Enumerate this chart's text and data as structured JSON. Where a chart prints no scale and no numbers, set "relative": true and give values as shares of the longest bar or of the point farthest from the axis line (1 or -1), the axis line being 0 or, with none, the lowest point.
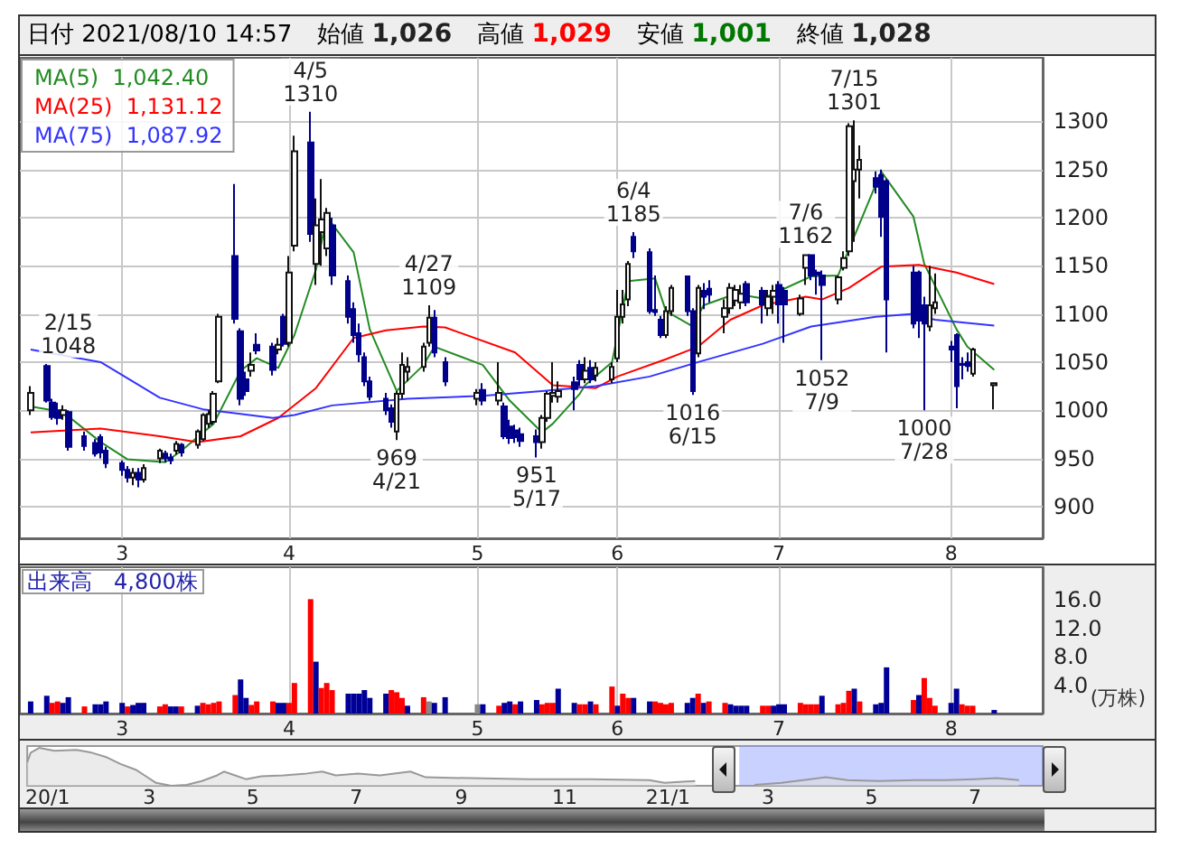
{
  "chart_data": [
    {
      "type": "candlestick",
      "x": [
        "2021-02-12",
        "2021-02-15",
        "2021-02-16",
        "2021-02-17",
        "2021-02-18",
        "2021-02-19",
        "2021-02-22",
        "2021-02-24",
        "2021-02-25",
        "2021-02-26",
        "2021-03-01",
        "2021-03-02",
        "2021-03-03",
        "2021-03-04",
        "2021-03-05",
        "2021-03-08",
        "2021-03-09",
        "2021-03-10",
        "2021-03-11",
        "2021-03-12",
        "2021-03-15",
        "2021-03-16",
        "2021-03-17",
        "2021-03-18",
        "2021-03-19",
        "2021-03-22",
        "2021-03-23",
        "2021-03-24",
        "2021-03-25",
        "2021-03-26",
        "2021-03-29",
        "2021-03-30",
        "2021-03-31",
        "2021-04-01",
        "2021-04-02",
        "2021-04-05",
        "2021-04-06",
        "2021-04-07",
        "2021-04-08",
        "2021-04-09",
        "2021-04-12",
        "2021-04-13",
        "2021-04-14",
        "2021-04-15",
        "2021-04-16",
        "2021-04-19",
        "2021-04-20",
        "2021-04-21",
        "2021-04-22",
        "2021-04-23",
        "2021-04-26",
        "2021-04-27",
        "2021-04-28",
        "2021-04-30",
        "2021-05-06",
        "2021-05-07",
        "2021-05-10",
        "2021-05-11",
        "2021-05-12",
        "2021-05-13",
        "2021-05-14",
        "2021-05-17",
        "2021-05-18",
        "2021-05-19",
        "2021-05-20",
        "2021-05-21",
        "2021-05-24",
        "2021-05-25",
        "2021-05-26",
        "2021-05-27",
        "2021-05-28",
        "2021-05-31",
        "2021-06-01",
        "2021-06-02",
        "2021-06-03",
        "2021-06-04",
        "2021-06-07",
        "2021-06-08",
        "2021-06-09",
        "2021-06-10",
        "2021-06-11",
        "2021-06-14",
        "2021-06-15",
        "2021-06-16",
        "2021-06-17",
        "2021-06-18",
        "2021-06-21",
        "2021-06-22",
        "2021-06-23",
        "2021-06-24",
        "2021-06-25",
        "2021-06-28",
        "2021-06-29",
        "2021-06-30",
        "2021-07-01",
        "2021-07-02",
        "2021-07-05",
        "2021-07-06",
        "2021-07-07",
        "2021-07-08",
        "2021-07-09",
        "2021-07-12",
        "2021-07-13",
        "2021-07-14",
        "2021-07-15",
        "2021-07-16",
        "2021-07-19",
        "2021-07-20",
        "2021-07-21",
        "2021-07-26",
        "2021-07-27",
        "2021-07-28",
        "2021-07-29",
        "2021-07-30",
        "2021-08-02",
        "2021-08-03",
        "2021-08-04",
        "2021-08-05",
        "2021-08-06",
        "2021-08-10"
      ],
      "ohlc": [
        [
          1000,
          1025,
          995,
          1018
        ],
        [
          1046,
          1048,
          1008,
          1010
        ],
        [
          1008,
          1012,
          990,
          993
        ],
        [
          1000,
          1008,
          985,
          992
        ],
        [
          995,
          1005,
          990,
          1000
        ],
        [
          998,
          1000,
          958,
          962
        ],
        [
          973,
          978,
          958,
          963
        ],
        [
          966,
          970,
          952,
          955
        ],
        [
          972,
          975,
          950,
          956
        ],
        [
          958,
          962,
          940,
          945
        ],
        [
          945,
          948,
          932,
          938
        ],
        [
          938,
          942,
          925,
          930
        ],
        [
          930,
          940,
          922,
          935
        ],
        [
          935,
          940,
          920,
          928
        ],
        [
          928,
          944,
          925,
          940
        ],
        [
          950,
          960,
          945,
          958
        ],
        [
          955,
          958,
          946,
          950
        ],
        [
          951,
          955,
          944,
          948
        ],
        [
          958,
          968,
          954,
          965
        ],
        [
          964,
          966,
          952,
          956
        ],
        [
          964,
          980,
          960,
          978
        ],
        [
          970,
          997,
          968,
          995
        ],
        [
          986,
          1000,
          982,
          996
        ],
        [
          988,
          1020,
          985,
          1017
        ],
        [
          1030,
          1100,
          1028,
          1097
        ],
        [
          1160,
          1235,
          1090,
          1095
        ],
        [
          1082,
          1085,
          1005,
          1012
        ],
        [
          1032,
          1040,
          1015,
          1020
        ],
        [
          1041,
          1060,
          1035,
          1047
        ],
        [
          1068,
          1080,
          1058,
          1062
        ],
        [
          1066,
          1070,
          1036,
          1042
        ],
        [
          1063,
          1075,
          1058,
          1068
        ],
        [
          1097,
          1100,
          1066,
          1069
        ],
        [
          1070,
          1160,
          1066,
          1143
        ],
        [
          1171,
          1285,
          1165,
          1269
        ],
        [
          1278,
          1310,
          1175,
          1183
        ],
        [
          1152,
          1220,
          1130,
          1192
        ],
        [
          1185,
          1240,
          1150,
          1198
        ],
        [
          1168,
          1210,
          1160,
          1205
        ],
        [
          1192,
          1200,
          1130,
          1140
        ],
        [
          1134,
          1140,
          1090,
          1097
        ],
        [
          1105,
          1112,
          1070,
          1078
        ],
        [
          1080,
          1090,
          1050,
          1058
        ],
        [
          1055,
          1060,
          1025,
          1030
        ],
        [
          1030,
          1035,
          1010,
          1014
        ],
        [
          1012,
          1018,
          995,
          1000
        ],
        [
          1002,
          1006,
          982,
          988
        ],
        [
          978,
          1020,
          969,
          1017
        ],
        [
          1017,
          1060,
          1012,
          1047
        ],
        [
          1040,
          1055,
          1030,
          1045
        ],
        [
          1045,
          1070,
          1040,
          1066
        ],
        [
          1070,
          1109,
          1066,
          1096
        ],
        [
          1096,
          1104,
          1055,
          1060
        ],
        [
          1050,
          1055,
          1025,
          1030
        ],
        [
          1012,
          1022,
          1005,
          1018
        ],
        [
          1021,
          1028,
          1005,
          1010
        ],
        [
          1010,
          1050,
          1005,
          1018
        ],
        [
          1004,
          1008,
          970,
          973
        ],
        [
          983,
          990,
          965,
          971
        ],
        [
          979,
          985,
          966,
          972
        ],
        [
          975,
          982,
          962,
          968
        ],
        [
          973,
          980,
          951,
          967
        ],
        [
          967,
          995,
          960,
          992
        ],
        [
          992,
          1020,
          988,
          1017
        ],
        [
          1015,
          1050,
          1008,
          1018
        ],
        [
          1014,
          1030,
          1008,
          1020
        ],
        [
          1029,
          1035,
          1000,
          1022
        ],
        [
          1047,
          1052,
          1025,
          1032
        ],
        [
          1032,
          1055,
          1028,
          1041
        ],
        [
          1044,
          1052,
          1028,
          1032
        ],
        [
          1036,
          1050,
          1030,
          1044
        ],
        [
          1032,
          1050,
          1028,
          1045
        ],
        [
          1054,
          1125,
          1050,
          1097
        ],
        [
          1097,
          1125,
          1090,
          1110
        ],
        [
          1115,
          1155,
          1108,
          1152
        ],
        [
          1180,
          1185,
          1158,
          1165
        ],
        [
          1164,
          1168,
          1100,
          1103
        ],
        [
          1104,
          1140,
          1098,
          1102
        ],
        [
          1094,
          1098,
          1075,
          1078
        ],
        [
          1078,
          1108,
          1075,
          1103
        ],
        [
          1103,
          1130,
          1098,
          1127
        ],
        [
          1139,
          1140,
          1098,
          1103
        ],
        [
          1103,
          1106,
          1016,
          1020
        ],
        [
          1059,
          1130,
          1055,
          1127
        ],
        [
          1124,
          1132,
          1105,
          1118
        ],
        [
          1126,
          1135,
          1112,
          1120
        ],
        [
          1097,
          1115,
          1080,
          1106
        ],
        [
          1106,
          1132,
          1100,
          1127
        ],
        [
          1114,
          1130,
          1108,
          1125
        ],
        [
          1112,
          1130,
          1105,
          1121
        ],
        [
          1131,
          1134,
          1108,
          1112
        ],
        [
          1124,
          1128,
          1090,
          1110
        ],
        [
          1106,
          1125,
          1098,
          1118
        ],
        [
          1118,
          1130,
          1100,
          1124
        ],
        [
          1130,
          1134,
          1090,
          1110
        ],
        [
          1124,
          1128,
          1070,
          1110
        ],
        [
          1100,
          1120,
          1098,
          1116
        ],
        [
          1148,
          1162,
          1130,
          1161
        ],
        [
          1161,
          1162,
          1135,
          1140
        ],
        [
          1143,
          1146,
          1120,
          1141
        ],
        [
          1140,
          1145,
          1052,
          1130
        ],
        [
          1115,
          1140,
          1110,
          1138
        ],
        [
          1148,
          1165,
          1145,
          1158
        ],
        [
          1165,
          1298,
          1160,
          1295
        ],
        [
          1238,
          1301,
          1175,
          1250
        ],
        [
          1250,
          1275,
          1220,
          1260
        ],
        [
          1241,
          1248,
          1225,
          1232
        ],
        [
          1244,
          1250,
          1180,
          1201
        ],
        [
          1238,
          1240,
          1060,
          1115
        ],
        [
          1143,
          1150,
          1085,
          1090
        ],
        [
          1143,
          1145,
          1075,
          1093
        ],
        [
          1109,
          1118,
          1000,
          1090
        ],
        [
          1087,
          1150,
          1082,
          1109
        ],
        [
          1106,
          1142,
          1100,
          1112
        ],
        [
          1066,
          1072,
          1050,
          1063
        ],
        [
          1078,
          1080,
          1002,
          1025
        ],
        [
          1048,
          1055,
          1032,
          1047
        ],
        [
          1050,
          1060,
          1040,
          1046
        ],
        [
          1038,
          1065,
          1035,
          1063
        ],
        [
          1026,
          1029,
          1001,
          1028
        ]
      ],
      "series": [
        {
          "type": "line",
          "name": "MA(5)  1,042.40",
          "color": "#228b22",
          "x": [
            "2021-02-12",
            "2021-02-18",
            "2021-02-25",
            "2021-03-02",
            "2021-03-09",
            "2021-03-12",
            "2021-03-18",
            "2021-03-23",
            "2021-03-26",
            "2021-03-30",
            "2021-04-02",
            "2021-04-06",
            "2021-04-08",
            "2021-04-13",
            "2021-04-16",
            "2021-04-21",
            "2021-04-26",
            "2021-04-28",
            "2021-05-07",
            "2021-05-12",
            "2021-05-18",
            "2021-05-20",
            "2021-05-25",
            "2021-05-26",
            "2021-05-31",
            "2021-06-03",
            "2021-06-08",
            "2021-06-10",
            "2021-06-15",
            "2021-06-17",
            "2021-06-23",
            "2021-06-28",
            "2021-06-30",
            "2021-07-07",
            "2021-07-12",
            "2021-07-20",
            "2021-07-26",
            "2021-07-28",
            "2021-08-03",
            "2021-08-05",
            "2021-08-10"
          ],
          "values": [
            1004,
            998,
            967,
            949,
            946,
            958,
            986,
            1041,
            1054,
            1044,
            1078,
            1146,
            1201,
            1164,
            1084,
            1020,
            1047,
            1066,
            1047,
            1010,
            977,
            986,
            1017,
            1026,
            1050,
            1134,
            1137,
            1103,
            1087,
            1109,
            1121,
            1116,
            1121,
            1139,
            1140,
            1248,
            1201,
            1152,
            1084,
            1066,
            1042
          ]
        },
        {
          "type": "line",
          "name": "MA(25)  1,131.12",
          "color": "#ff0000",
          "x": [
            "2021-02-12",
            "2021-02-25",
            "2021-03-08",
            "2021-03-15",
            "2021-03-23",
            "2021-03-30",
            "2021-04-06",
            "2021-04-13",
            "2021-04-19",
            "2021-04-26",
            "2021-04-30",
            "2021-05-13",
            "2021-05-20",
            "2021-05-28",
            "2021-06-01",
            "2021-06-10",
            "2021-06-16",
            "2021-06-22",
            "2021-06-28",
            "2021-07-06",
            "2021-07-09",
            "2021-07-14",
            "2021-07-20",
            "2021-07-27",
            "2021-08-03",
            "2021-08-10"
          ],
          "values": [
            977,
            981,
            973,
            967,
            973,
            992,
            1023,
            1075,
            1083,
            1087,
            1086,
            1060,
            1026,
            1023,
            1035,
            1053,
            1066,
            1094,
            1109,
            1118,
            1115,
            1127,
            1149,
            1151,
            1143,
            1131
          ]
        },
        {
          "type": "line",
          "name": "MA(75)  1,087.92",
          "color": "#3333ff",
          "x": [
            "2021-02-12",
            "2021-02-25",
            "2021-03-08",
            "2021-03-16",
            "2021-03-29",
            "2021-04-02",
            "2021-04-09",
            "2021-04-23",
            "2021-05-07",
            "2021-05-18",
            "2021-05-28",
            "2021-06-07",
            "2021-06-16",
            "2021-06-28",
            "2021-07-07",
            "2021-07-19",
            "2021-07-26",
            "2021-07-30",
            "2021-08-10"
          ],
          "values": [
            1063,
            1050,
            1013,
            1001,
            992,
            995,
            1005,
            1012,
            1015,
            1020,
            1025,
            1035,
            1050,
            1069,
            1087,
            1097,
            1100,
            1094,
            1088
          ]
        }
      ],
      "ylim": [
        867,
        1366
      ],
      "yticks": [
        900,
        950,
        1000,
        1050,
        1100,
        1150,
        1200,
        1250,
        1300
      ],
      "xlim": [
        "2021-02-10",
        "2021-08-19"
      ],
      "xticks": [
        {
          "value": "2021-03-01",
          "label": "3"
        },
        {
          "value": "2021-04-01",
          "label": "4"
        },
        {
          "value": "2021-05-06",
          "label": "5"
        },
        {
          "value": "2021-06-01",
          "label": "6"
        },
        {
          "value": "2021-07-01",
          "label": "7"
        },
        {
          "value": "2021-08-02",
          "label": "8"
        }
      ],
      "grid": true,
      "legend": "top left",
      "annotations": [
        "日付 2021/08/10 14:57",
        "始値 1,026",
        "高値 1,029",
        "安値 1,001",
        "終値 1,028",
        {
          "text": "2/15\n1048",
          "x": "2021-02-15",
          "y": 1048
        },
        {
          "text": "4/5\n1310",
          "x": "2021-04-05",
          "y": 1310
        },
        {
          "text": "969\n4/21",
          "x": "2021-04-21",
          "y": 969
        },
        {
          "text": "4/27\n1109",
          "x": "2021-04-27",
          "y": 1109
        },
        {
          "text": "951\n5/17",
          "x": "2021-05-17",
          "y": 951
        },
        {
          "text": "6/4\n1185",
          "x": "2021-06-04",
          "y": 1185
        },
        {
          "text": "1016\n6/15",
          "x": "2021-06-15",
          "y": 1016
        },
        {
          "text": "7/6\n1162",
          "x": "2021-07-06",
          "y": 1162
        },
        {
          "text": "1052\n7/9",
          "x": "2021-07-09",
          "y": 1052
        },
        {
          "text": "7/15\n1301",
          "x": "2021-07-15",
          "y": 1301
        },
        {
          "text": "1000\n7/28",
          "x": "2021-07-28",
          "y": 1000
        }
      ]
    },
    {
      "type": "bar",
      "title": "出来高　4,800株",
      "ylabel": "(万株)",
      "x": [
        "2021-02-12",
        "2021-02-15",
        "2021-02-16",
        "2021-02-17",
        "2021-02-18",
        "2021-02-19",
        "2021-02-22",
        "2021-02-24",
        "2021-02-25",
        "2021-02-26",
        "2021-03-01",
        "2021-03-02",
        "2021-03-03",
        "2021-03-04",
        "2021-03-05",
        "2021-03-08",
        "2021-03-09",
        "2021-03-10",
        "2021-03-11",
        "2021-03-12",
        "2021-03-15",
        "2021-03-16",
        "2021-03-17",
        "2021-03-18",
        "2021-03-19",
        "2021-03-22",
        "2021-03-23",
        "2021-03-24",
        "2021-03-25",
        "2021-03-26",
        "2021-03-29",
        "2021-03-30",
        "2021-03-31",
        "2021-04-01",
        "2021-04-02",
        "2021-04-05",
        "2021-04-06",
        "2021-04-07",
        "2021-04-08",
        "2021-04-09",
        "2021-04-12",
        "2021-04-13",
        "2021-04-14",
        "2021-04-15",
        "2021-04-16",
        "2021-04-19",
        "2021-04-20",
        "2021-04-21",
        "2021-04-22",
        "2021-04-23",
        "2021-04-26",
        "2021-04-27",
        "2021-04-28",
        "2021-04-30",
        "2021-05-06",
        "2021-05-07",
        "2021-05-10",
        "2021-05-11",
        "2021-05-12",
        "2021-05-13",
        "2021-05-14",
        "2021-05-17",
        "2021-05-18",
        "2021-05-19",
        "2021-05-20",
        "2021-05-21",
        "2021-05-24",
        "2021-05-25",
        "2021-05-26",
        "2021-05-27",
        "2021-05-28",
        "2021-05-31",
        "2021-06-01",
        "2021-06-02",
        "2021-06-03",
        "2021-06-04",
        "2021-06-07",
        "2021-06-08",
        "2021-06-09",
        "2021-06-10",
        "2021-06-11",
        "2021-06-14",
        "2021-06-15",
        "2021-06-16",
        "2021-06-17",
        "2021-06-18",
        "2021-06-21",
        "2021-06-22",
        "2021-06-23",
        "2021-06-24",
        "2021-06-25",
        "2021-06-28",
        "2021-06-29",
        "2021-06-30",
        "2021-07-01",
        "2021-07-02",
        "2021-07-05",
        "2021-07-06",
        "2021-07-07",
        "2021-07-08",
        "2021-07-09",
        "2021-07-12",
        "2021-07-13",
        "2021-07-14",
        "2021-07-15",
        "2021-07-16",
        "2021-07-19",
        "2021-07-20",
        "2021-07-21",
        "2021-07-26",
        "2021-07-27",
        "2021-07-28",
        "2021-07-29",
        "2021-07-30",
        "2021-08-02",
        "2021-08-03",
        "2021-08-04",
        "2021-08-05",
        "2021-08-06",
        "2021-08-10"
      ],
      "values": [
        1.7,
        2.5,
        1.5,
        1.7,
        1.5,
        2.3,
        1.0,
        1.3,
        1.3,
        1.7,
        1.5,
        1.0,
        1.2,
        1.5,
        1.5,
        1.0,
        1.3,
        1.0,
        1.0,
        1.0,
        1.1,
        1.5,
        1.3,
        1.5,
        1.7,
        2.6,
        4.8,
        2.2,
        1.2,
        1.7,
        1.7,
        1.5,
        1.5,
        1.5,
        4.3,
        16.1,
        7.3,
        3.6,
        4.3,
        3.3,
        2.8,
        2.8,
        2.8,
        3.3,
        2.2,
        2.8,
        3.3,
        3.0,
        2.2,
        1.1,
        2.3,
        1.7,
        1.5,
        2.3,
        1.3,
        1.3,
        1.1,
        1.5,
        1.7,
        1.3,
        1.7,
        1.9,
        1.3,
        1.5,
        1.5,
        3.5,
        1.5,
        1.3,
        1.3,
        1.7,
        1.3,
        3.8,
        1.1,
        2.8,
        2.2,
        2.2,
        1.7,
        1.7,
        1.5,
        1.3,
        1.5,
        1.5,
        2.2,
        2.8,
        1.5,
        1.7,
        1.5,
        1.3,
        1.1,
        1.1,
        1.1,
        1.1,
        1.1,
        1.1,
        1.3,
        1.3,
        1.5,
        1.3,
        1.3,
        1.3,
        2.5,
        1.3,
        1.5,
        3.2,
        3.5,
        1.7,
        1.3,
        1.5,
        6.5,
        1.9,
        2.6,
        5.0,
        2.2,
        1.1,
        1.5,
        3.5,
        1.3,
        1.1,
        1.1,
        0.5
      ],
      "colors": [
        "#000099",
        "#000099",
        "#ff0000",
        "#ff0000",
        "#000099",
        "#000099",
        "#ff0000",
        "#000099",
        "#000099",
        "#000099",
        "#000099",
        "#ff0000",
        "#000099",
        "#000099",
        "#000099",
        "#ff0000",
        "#ff0000",
        "#000099",
        "#000099",
        "#ff0000",
        "#000099",
        "#ff0000",
        "#ff0000",
        "#ff0000",
        "#ff0000",
        "#ff0000",
        "#000099",
        "#000099",
        "#ff0000",
        "#ff0000",
        "#ff0000",
        "#000099",
        "#000099",
        "#ff0000",
        "#ff0000",
        "#ff0000",
        "#000099",
        "#ff0000",
        "#ff0000",
        "#ff0000",
        "#000099",
        "#000099",
        "#000099",
        "#000099",
        "#000099",
        "#000099",
        "#ff0000",
        "#ff0000",
        "#ff0000",
        "#000099",
        "#ff0000",
        "#888888",
        "#000099",
        "#000099",
        "#888888",
        "#000099",
        "#ff0000",
        "#000099",
        "#000099",
        "#ff0000",
        "#000099",
        "#000099",
        "#ff0000",
        "#ff0000",
        "#ff0000",
        "#000099",
        "#000099",
        "#ff0000",
        "#ff0000",
        "#000099",
        "#ff0000",
        "#ff0000",
        "#000099",
        "#ff0000",
        "#ff0000",
        "#000099",
        "#000099",
        "#ff0000",
        "#ff0000",
        "#ff0000",
        "#ff0000",
        "#000099",
        "#000099",
        "#ff0000",
        "#000099",
        "#ff0000",
        "#ff0000",
        "#000099",
        "#000099",
        "#000099",
        "#000099",
        "#ff0000",
        "#ff0000",
        "#000099",
        "#000099",
        "#000099",
        "#ff0000",
        "#ff0000",
        "#ff0000",
        "#ff0000",
        "#000099",
        "#ff0000",
        "#ff0000",
        "#ff0000",
        "#000099",
        "#ff0000",
        "#000099",
        "#000099",
        "#000099",
        "#ff0000",
        "#000099",
        "#ff0000",
        "#ff0000",
        "#ff0000",
        "#000099",
        "#000099",
        "#ff0000",
        "#ff0000",
        "#ff0000",
        "#000099"
      ],
      "ylim": [
        0,
        20.6
      ],
      "xlim": [
        "2021-02-10",
        "2021-08-19"
      ],
      "yticks": [
        {
          "value": 4,
          "label": "4.0"
        },
        {
          "value": 8,
          "label": "8.0"
        },
        {
          "value": 12,
          "label": "12.0"
        },
        {
          "value": 16,
          "label": "16.0"
        }
      ],
      "xticks": [
        {
          "value": "2021-03-01",
          "label": "3"
        },
        {
          "value": "2021-04-01",
          "label": "4"
        },
        {
          "value": "2021-05-06",
          "label": "5"
        },
        {
          "value": "2021-06-01",
          "label": "6"
        },
        {
          "value": "2021-07-01",
          "label": "7"
        },
        {
          "value": "2021-08-02",
          "label": "8"
        }
      ],
      "grid": "x"
    },
    {
      "type": "area",
      "relative": true,
      "color": "#999999",
      "tick_labels": "x",
      "x": [
        "2019-12-20",
        "2019-12-22",
        "2019-12-27",
        "2020-01-05",
        "2020-01-18",
        "2020-01-27",
        "2020-02-05",
        "2020-02-13",
        "2020-02-22",
        "2020-02-28",
        "2020-03-05",
        "2020-03-14",
        "2020-03-23",
        "2020-04-01",
        "2020-04-10",
        "2020-04-14",
        "2020-04-19",
        "2020-04-27",
        "2020-05-06",
        "2020-05-19",
        "2020-06-02",
        "2020-06-11",
        "2020-06-19",
        "2020-07-02",
        "2020-07-15",
        "2020-08-02",
        "2020-08-11",
        "2020-09-07",
        "2020-10-11",
        "2020-11-16",
        "2020-12-21",
        "2020-12-30",
        "2021-01-17",
        "2021-02-11",
        "2021-02-21",
        "2021-03-09",
        "2021-03-26",
        "2021-04-04",
        "2021-04-17",
        "2021-05-05",
        "2021-05-27",
        "2021-06-14",
        "2021-07-01",
        "2021-07-14",
        "2021-07-27"
      ],
      "values": [
        0.625,
        0.875,
        1.0,
        0.925,
        0.95,
        0.875,
        0.75,
        0.575,
        0.425,
        0.25,
        0.075,
        0.0,
        0.025,
        0.125,
        0.275,
        0.375,
        0.3,
        0.175,
        0.25,
        0.275,
        0.325,
        0.375,
        0.275,
        0.325,
        0.275,
        0.375,
        0.225,
        0.2,
        0.175,
        0.175,
        0.15,
        0.075,
        0.125,
        null,
        0.025,
        0.075,
        0.175,
        0.225,
        0.15,
        0.125,
        0.15,
        0.15,
        0.175,
        0.2,
        0.15
      ],
      "xlim": [
        "2019-12-20",
        "2021-08-10"
      ],
      "xticks": [
        {
          "value": "2020-01-01",
          "label": "20/1"
        },
        {
          "value": "2020-03-01",
          "label": "3"
        },
        {
          "value": "2020-05-01",
          "label": "5"
        },
        {
          "value": "2020-07-01",
          "label": "7"
        },
        {
          "value": "2020-09-01",
          "label": "9"
        },
        {
          "value": "2020-11-01",
          "label": "11"
        },
        {
          "value": "2021-01-01",
          "label": "21/1"
        },
        {
          "value": "2021-03-01",
          "label": "3"
        },
        {
          "value": "2021-05-01",
          "label": "5"
        },
        {
          "value": "2021-07-01",
          "label": "7"
        }
      ],
      "bands": [
        {
          "axis": "x",
          "from": "2021-02-12",
          "to": "2021-08-10",
          "color": "#8899ff"
        }
      ]
    }
  ]
}
